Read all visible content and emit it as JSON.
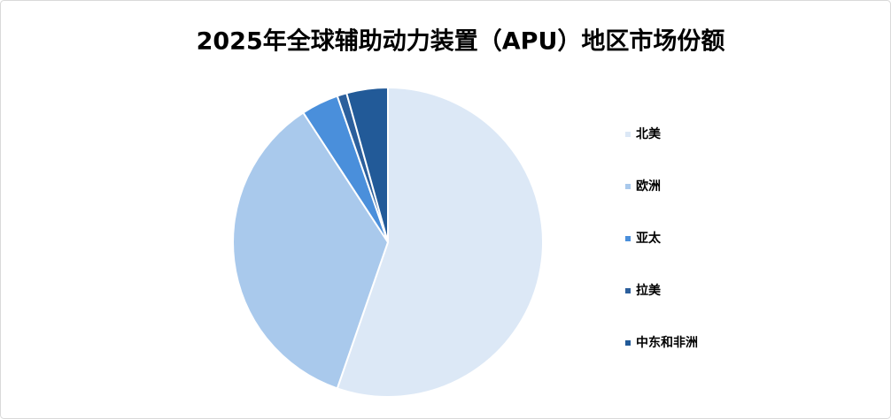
{
  "chart_data": {
    "type": "pie",
    "title": "2025年全球辅助动力装置（APU）地区市场份额",
    "categories": [
      "北美",
      "欧洲",
      "亚太",
      "拉美",
      "中东和非洲"
    ],
    "values": [
      55.3,
      35.5,
      3.9,
      1.0,
      4.3
    ],
    "colors": [
      "#dce8f6",
      "#a9c9ec",
      "#4a8fdb",
      "#2c5f9c",
      "#225a98"
    ],
    "legend": "right"
  }
}
